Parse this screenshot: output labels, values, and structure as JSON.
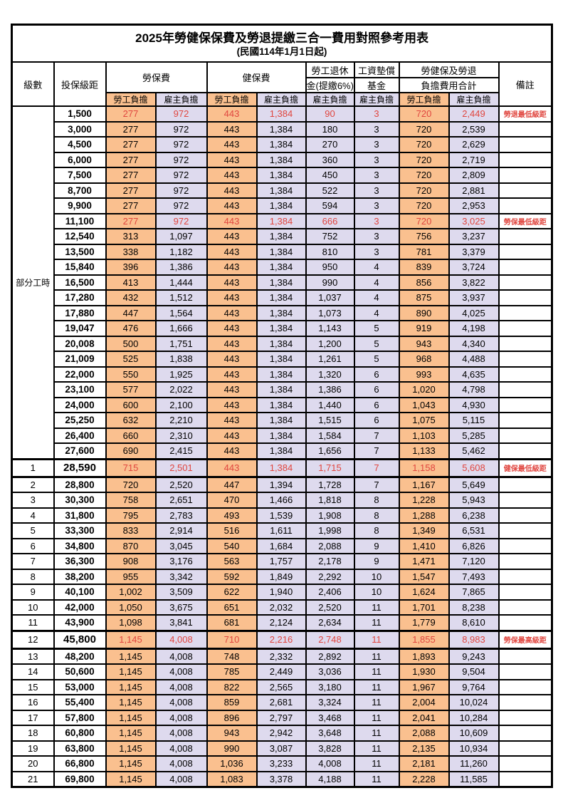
{
  "title": "2025年勞健保保費及勞退提繳三合一費用對照參考用表",
  "subtitle": "(民國114年1月1日起)",
  "columns": {
    "level": "級數",
    "bracket": "投保級距",
    "labor_insurance": "勞保費",
    "health_insurance": "健保費",
    "pension_line1": "勞工退休",
    "pension_line2": "金(提繳6%)",
    "wage_fund_line1": "工資墊償",
    "wage_fund_line2": "基金",
    "total_line1": "勞健保及勞退",
    "total_line2": "負擔費用合計",
    "remark": "備註",
    "employee": "勞工負擔",
    "employer": "雇主負擔"
  },
  "part_time_label": "部分工時",
  "part_time_rowspan": 23,
  "colors": {
    "employee_bg": "#fac08f",
    "employer_bg": "#dedaee",
    "highlight_text": "#e0463f",
    "border": "#000000"
  },
  "rows": [
    {
      "level": "",
      "bracket": "1,500",
      "values": [
        "277",
        "972",
        "443",
        "1,384",
        "90",
        "3",
        "720",
        "2,449"
      ],
      "remark": "勞退最低級距",
      "red": true,
      "emph": false
    },
    {
      "level": "",
      "bracket": "3,000",
      "values": [
        "277",
        "972",
        "443",
        "1,384",
        "180",
        "3",
        "720",
        "2,539"
      ],
      "remark": "",
      "red": false,
      "emph": false
    },
    {
      "level": "",
      "bracket": "4,500",
      "values": [
        "277",
        "972",
        "443",
        "1,384",
        "270",
        "3",
        "720",
        "2,629"
      ],
      "remark": "",
      "red": false,
      "emph": false
    },
    {
      "level": "",
      "bracket": "6,000",
      "values": [
        "277",
        "972",
        "443",
        "1,384",
        "360",
        "3",
        "720",
        "2,719"
      ],
      "remark": "",
      "red": false,
      "emph": false
    },
    {
      "level": "",
      "bracket": "7,500",
      "values": [
        "277",
        "972",
        "443",
        "1,384",
        "450",
        "3",
        "720",
        "2,809"
      ],
      "remark": "",
      "red": false,
      "emph": false
    },
    {
      "level": "",
      "bracket": "8,700",
      "values": [
        "277",
        "972",
        "443",
        "1,384",
        "522",
        "3",
        "720",
        "2,881"
      ],
      "remark": "",
      "red": false,
      "emph": false
    },
    {
      "level": "",
      "bracket": "9,900",
      "values": [
        "277",
        "972",
        "443",
        "1,384",
        "594",
        "3",
        "720",
        "2,953"
      ],
      "remark": "",
      "red": false,
      "emph": false
    },
    {
      "level": "",
      "bracket": "11,100",
      "values": [
        "277",
        "972",
        "443",
        "1,384",
        "666",
        "3",
        "720",
        "3,025"
      ],
      "remark": "勞保最低級距",
      "red": true,
      "emph": false
    },
    {
      "level": "",
      "bracket": "12,540",
      "values": [
        "313",
        "1,097",
        "443",
        "1,384",
        "752",
        "3",
        "756",
        "3,237"
      ],
      "remark": "",
      "red": false,
      "emph": false
    },
    {
      "level": "",
      "bracket": "13,500",
      "values": [
        "338",
        "1,182",
        "443",
        "1,384",
        "810",
        "3",
        "781",
        "3,379"
      ],
      "remark": "",
      "red": false,
      "emph": false
    },
    {
      "level": "",
      "bracket": "15,840",
      "values": [
        "396",
        "1,386",
        "443",
        "1,384",
        "950",
        "4",
        "839",
        "3,724"
      ],
      "remark": "",
      "red": false,
      "emph": false
    },
    {
      "level": "",
      "bracket": "16,500",
      "values": [
        "413",
        "1,444",
        "443",
        "1,384",
        "990",
        "4",
        "856",
        "3,822"
      ],
      "remark": "",
      "red": false,
      "emph": false
    },
    {
      "level": "",
      "bracket": "17,280",
      "values": [
        "432",
        "1,512",
        "443",
        "1,384",
        "1,037",
        "4",
        "875",
        "3,937"
      ],
      "remark": "",
      "red": false,
      "emph": false
    },
    {
      "level": "",
      "bracket": "17,880",
      "values": [
        "447",
        "1,564",
        "443",
        "1,384",
        "1,073",
        "4",
        "890",
        "4,025"
      ],
      "remark": "",
      "red": false,
      "emph": false
    },
    {
      "level": "",
      "bracket": "19,047",
      "values": [
        "476",
        "1,666",
        "443",
        "1,384",
        "1,143",
        "5",
        "919",
        "4,198"
      ],
      "remark": "",
      "red": false,
      "emph": false
    },
    {
      "level": "",
      "bracket": "20,008",
      "values": [
        "500",
        "1,751",
        "443",
        "1,384",
        "1,200",
        "5",
        "943",
        "4,340"
      ],
      "remark": "",
      "red": false,
      "emph": false
    },
    {
      "level": "",
      "bracket": "21,009",
      "values": [
        "525",
        "1,838",
        "443",
        "1,384",
        "1,261",
        "5",
        "968",
        "4,488"
      ],
      "remark": "",
      "red": false,
      "emph": false
    },
    {
      "level": "",
      "bracket": "22,000",
      "values": [
        "550",
        "1,925",
        "443",
        "1,384",
        "1,320",
        "6",
        "993",
        "4,635"
      ],
      "remark": "",
      "red": false,
      "emph": false
    },
    {
      "level": "",
      "bracket": "23,100",
      "values": [
        "577",
        "2,022",
        "443",
        "1,384",
        "1,386",
        "6",
        "1,020",
        "4,798"
      ],
      "remark": "",
      "red": false,
      "emph": false
    },
    {
      "level": "",
      "bracket": "24,000",
      "values": [
        "600",
        "2,100",
        "443",
        "1,384",
        "1,440",
        "6",
        "1,043",
        "4,930"
      ],
      "remark": "",
      "red": false,
      "emph": false
    },
    {
      "level": "",
      "bracket": "25,250",
      "values": [
        "632",
        "2,210",
        "443",
        "1,384",
        "1,515",
        "6",
        "1,075",
        "5,115"
      ],
      "remark": "",
      "red": false,
      "emph": false
    },
    {
      "level": "",
      "bracket": "26,400",
      "values": [
        "660",
        "2,310",
        "443",
        "1,384",
        "1,584",
        "7",
        "1,103",
        "5,285"
      ],
      "remark": "",
      "red": false,
      "emph": false
    },
    {
      "level": "",
      "bracket": "27,600",
      "values": [
        "690",
        "2,415",
        "443",
        "1,384",
        "1,656",
        "7",
        "1,133",
        "5,462"
      ],
      "remark": "",
      "red": false,
      "emph": false
    },
    {
      "level": "1",
      "bracket": "28,590",
      "values": [
        "715",
        "2,501",
        "443",
        "1,384",
        "1,715",
        "7",
        "1,158",
        "5,608"
      ],
      "remark": "健保最低級距",
      "red": true,
      "emph": true
    },
    {
      "level": "2",
      "bracket": "28,800",
      "values": [
        "720",
        "2,520",
        "447",
        "1,394",
        "1,728",
        "7",
        "1,167",
        "5,649"
      ],
      "remark": "",
      "red": false,
      "emph": false
    },
    {
      "level": "3",
      "bracket": "30,300",
      "values": [
        "758",
        "2,651",
        "470",
        "1,466",
        "1,818",
        "8",
        "1,228",
        "5,943"
      ],
      "remark": "",
      "red": false,
      "emph": false
    },
    {
      "level": "4",
      "bracket": "31,800",
      "values": [
        "795",
        "2,783",
        "493",
        "1,539",
        "1,908",
        "8",
        "1,288",
        "6,238"
      ],
      "remark": "",
      "red": false,
      "emph": false
    },
    {
      "level": "5",
      "bracket": "33,300",
      "values": [
        "833",
        "2,914",
        "516",
        "1,611",
        "1,998",
        "8",
        "1,349",
        "6,531"
      ],
      "remark": "",
      "red": false,
      "emph": false
    },
    {
      "level": "6",
      "bracket": "34,800",
      "values": [
        "870",
        "3,045",
        "540",
        "1,684",
        "2,088",
        "9",
        "1,410",
        "6,826"
      ],
      "remark": "",
      "red": false,
      "emph": false
    },
    {
      "level": "7",
      "bracket": "36,300",
      "values": [
        "908",
        "3,176",
        "563",
        "1,757",
        "2,178",
        "9",
        "1,471",
        "7,120"
      ],
      "remark": "",
      "red": false,
      "emph": false
    },
    {
      "level": "8",
      "bracket": "38,200",
      "values": [
        "955",
        "3,342",
        "592",
        "1,849",
        "2,292",
        "10",
        "1,547",
        "7,493"
      ],
      "remark": "",
      "red": false,
      "emph": false
    },
    {
      "level": "9",
      "bracket": "40,100",
      "values": [
        "1,002",
        "3,509",
        "622",
        "1,940",
        "2,406",
        "10",
        "1,624",
        "7,865"
      ],
      "remark": "",
      "red": false,
      "emph": false
    },
    {
      "level": "10",
      "bracket": "42,000",
      "values": [
        "1,050",
        "3,675",
        "651",
        "2,032",
        "2,520",
        "11",
        "1,701",
        "8,238"
      ],
      "remark": "",
      "red": false,
      "emph": false
    },
    {
      "level": "11",
      "bracket": "43,900",
      "values": [
        "1,098",
        "3,841",
        "681",
        "2,124",
        "2,634",
        "11",
        "1,779",
        "8,610"
      ],
      "remark": "",
      "red": false,
      "emph": false
    },
    {
      "level": "12",
      "bracket": "45,800",
      "values": [
        "1,145",
        "4,008",
        "710",
        "2,216",
        "2,748",
        "11",
        "1,855",
        "8,983"
      ],
      "remark": "勞保最高級距",
      "red": true,
      "emph": true
    },
    {
      "level": "13",
      "bracket": "48,200",
      "values": [
        "1,145",
        "4,008",
        "748",
        "2,332",
        "2,892",
        "11",
        "1,893",
        "9,243"
      ],
      "remark": "",
      "red": false,
      "emph": false
    },
    {
      "level": "14",
      "bracket": "50,600",
      "values": [
        "1,145",
        "4,008",
        "785",
        "2,449",
        "3,036",
        "11",
        "1,930",
        "9,504"
      ],
      "remark": "",
      "red": false,
      "emph": false
    },
    {
      "level": "15",
      "bracket": "53,000",
      "values": [
        "1,145",
        "4,008",
        "822",
        "2,565",
        "3,180",
        "11",
        "1,967",
        "9,764"
      ],
      "remark": "",
      "red": false,
      "emph": false
    },
    {
      "level": "16",
      "bracket": "55,400",
      "values": [
        "1,145",
        "4,008",
        "859",
        "2,681",
        "3,324",
        "11",
        "2,004",
        "10,024"
      ],
      "remark": "",
      "red": false,
      "emph": false
    },
    {
      "level": "17",
      "bracket": "57,800",
      "values": [
        "1,145",
        "4,008",
        "896",
        "2,797",
        "3,468",
        "11",
        "2,041",
        "10,284"
      ],
      "remark": "",
      "red": false,
      "emph": false
    },
    {
      "level": "18",
      "bracket": "60,800",
      "values": [
        "1,145",
        "4,008",
        "943",
        "2,942",
        "3,648",
        "11",
        "2,088",
        "10,609"
      ],
      "remark": "",
      "red": false,
      "emph": false
    },
    {
      "level": "19",
      "bracket": "63,800",
      "values": [
        "1,145",
        "4,008",
        "990",
        "3,087",
        "3,828",
        "11",
        "2,135",
        "10,934"
      ],
      "remark": "",
      "red": false,
      "emph": false
    },
    {
      "level": "20",
      "bracket": "66,800",
      "values": [
        "1,145",
        "4,008",
        "1,036",
        "3,233",
        "4,008",
        "11",
        "2,181",
        "11,260"
      ],
      "remark": "",
      "red": false,
      "emph": false
    },
    {
      "level": "21",
      "bracket": "69,800",
      "values": [
        "1,145",
        "4,008",
        "1,083",
        "3,378",
        "4,188",
        "11",
        "2,228",
        "11,585"
      ],
      "remark": "",
      "red": false,
      "emph": false
    }
  ]
}
